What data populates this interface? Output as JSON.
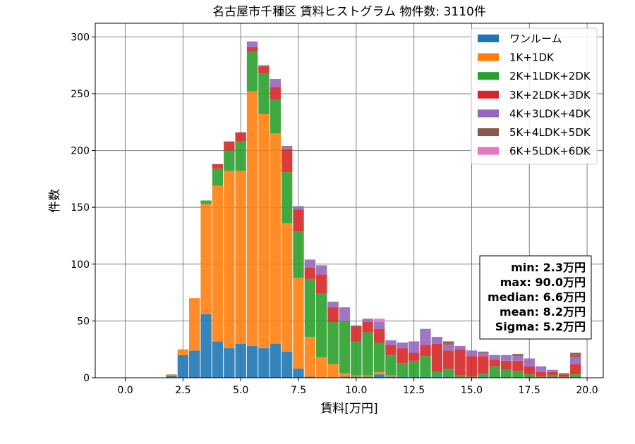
{
  "chart_data": {
    "type": "bar",
    "stacked": true,
    "title": "名古屋市千種区 賃料ヒストグラム 物件数: 3110件",
    "xlabel": "賃料[万円]",
    "ylabel": "件数",
    "xlim": [
      -1.3,
      20.7
    ],
    "ylim": [
      0,
      312
    ],
    "grid": true,
    "legend_position": "top-right",
    "xticks": [
      "0.0",
      "2.5",
      "5.0",
      "7.5",
      "10.0",
      "12.5",
      "15.0",
      "17.5",
      "20.0"
    ],
    "yticks": [
      "0",
      "50",
      "100",
      "150",
      "200",
      "250",
      "300"
    ],
    "bin_width": 0.5,
    "x": [
      2,
      2.5,
      3,
      3.5,
      4,
      4.5,
      5,
      5.5,
      6,
      6.5,
      7,
      7.5,
      8,
      8.5,
      9,
      9.5,
      10,
      10.5,
      11,
      11.5,
      12,
      12.5,
      13,
      13.5,
      14,
      14.5,
      15,
      15.5,
      16,
      16.5,
      17,
      17.5,
      18,
      18.5,
      19,
      19.5
    ],
    "series": [
      {
        "name": "ワンルーム",
        "color": "#1f77b4",
        "values": [
          2,
          20,
          24,
          56,
          32,
          26,
          30,
          28,
          26,
          30,
          23,
          8,
          1,
          0,
          0,
          1,
          1,
          1,
          3,
          1,
          1,
          1,
          1,
          1,
          1,
          0,
          0,
          1,
          0,
          0,
          0,
          0,
          0,
          0,
          0,
          0
        ]
      },
      {
        "name": "1K+1DK",
        "color": "#ff7f0e",
        "values": [
          1,
          5,
          46,
          97,
          137,
          156,
          152,
          224,
          206,
          185,
          113,
          80,
          35,
          18,
          12,
          3,
          1,
          1,
          2,
          1,
          0,
          0,
          0,
          0,
          0,
          0,
          0,
          0,
          0,
          0,
          0,
          0,
          0,
          0,
          0,
          0
        ]
      },
      {
        "name": "2K+1LDK+2DK",
        "color": "#2ca02c",
        "values": [
          0,
          0,
          0,
          3,
          15,
          18,
          26,
          35,
          36,
          30,
          45,
          41,
          51,
          56,
          37,
          46,
          30,
          38,
          26,
          18,
          12,
          14,
          18,
          4,
          7,
          2,
          1,
          3,
          10,
          7,
          6,
          3,
          1,
          2,
          1,
          3
        ]
      },
      {
        "name": "3K+2LDK+3DK",
        "color": "#d62728",
        "values": [
          0,
          0,
          0,
          0,
          4,
          8,
          8,
          4,
          6,
          11,
          20,
          19,
          10,
          17,
          13,
          0,
          13,
          9,
          12,
          9,
          13,
          7,
          10,
          25,
          16,
          23,
          18,
          15,
          6,
          8,
          9,
          7,
          4,
          3,
          2,
          9
        ]
      },
      {
        "name": "4K+3LDK+4DK",
        "color": "#9467bd",
        "values": [
          0,
          0,
          0,
          0,
          0,
          0,
          0,
          5,
          0,
          7,
          2,
          3,
          7,
          8,
          5,
          12,
          0,
          3,
          6,
          4,
          5,
          10,
          14,
          6,
          5,
          3,
          5,
          3,
          4,
          5,
          4,
          7,
          5,
          2,
          0,
          6
        ]
      },
      {
        "name": "5K+4LDK+5DK",
        "color": "#8c564b",
        "values": [
          0,
          0,
          0,
          0,
          0,
          0,
          0,
          0,
          1,
          0,
          1,
          0,
          0,
          0,
          0,
          0,
          1,
          0,
          0,
          0,
          0,
          0,
          0,
          0,
          3,
          0,
          0,
          1,
          0,
          0,
          2,
          0,
          0,
          0,
          1,
          4
        ]
      },
      {
        "name": "6K+5LDK+6DK",
        "color": "#e377c2",
        "values": [
          0,
          0,
          0,
          0,
          0,
          0,
          0,
          0,
          0,
          0,
          0,
          0,
          0,
          0,
          0,
          0,
          0,
          0,
          3,
          0,
          0,
          0,
          0,
          0,
          0,
          0,
          0,
          0,
          0,
          0,
          0,
          0,
          0,
          0,
          0,
          0
        ]
      }
    ],
    "stats_box": {
      "lines": [
        "min: 2.3万円",
        "max: 90.0万円",
        "median: 6.6万円",
        "mean: 8.2万円",
        "Sigma: 5.2万円"
      ]
    }
  }
}
